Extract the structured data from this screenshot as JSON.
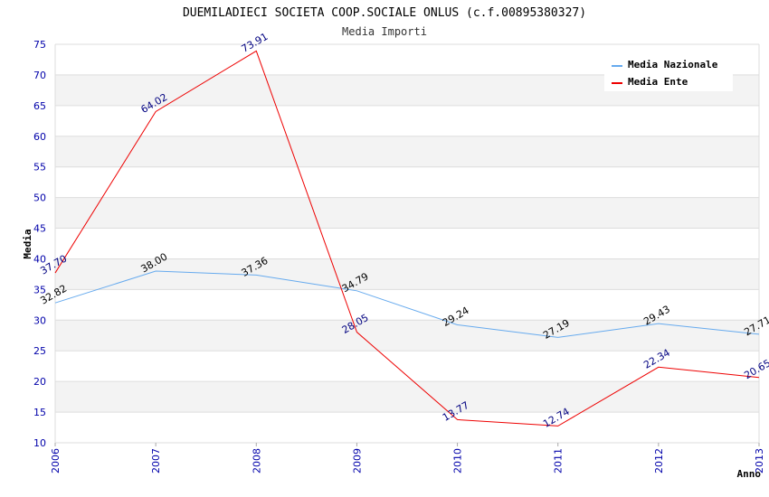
{
  "chart_data": {
    "type": "line",
    "title": "DUEMILADIECI SOCIETA COOP.SOCIALE ONLUS (c.f.00895380327)",
    "subtitle": "Media Importi",
    "xlabel": "Anno",
    "ylabel": "Media",
    "ylim": [
      10,
      75
    ],
    "yticks": [
      "10",
      "15",
      "20",
      "25",
      "30",
      "35",
      "40",
      "45",
      "50",
      "55",
      "60",
      "65",
      "70",
      "75"
    ],
    "categories": [
      "2006",
      "2007",
      "2008",
      "2009",
      "2010",
      "2011",
      "2012",
      "2013"
    ],
    "grid": "horizontal alternating bands",
    "legend_position": "top-right",
    "series": [
      {
        "name": "Media Nazionale",
        "color": "#66aaee",
        "values": [
          32.82,
          38.0,
          37.36,
          34.79,
          29.24,
          27.19,
          29.43,
          27.71
        ],
        "labels": [
          "32.82",
          "38.00",
          "37.36",
          "34.79",
          "29.24",
          "27.19",
          "29.43",
          "27.71"
        ]
      },
      {
        "name": "Media Ente",
        "color": "#ee0000",
        "values": [
          37.7,
          64.02,
          73.91,
          28.05,
          13.77,
          12.74,
          22.34,
          20.65
        ],
        "labels": [
          "37.70",
          "64.02",
          "73.91",
          "28.05",
          "13.77",
          "12.74",
          "22.34",
          "20.65"
        ]
      }
    ]
  }
}
